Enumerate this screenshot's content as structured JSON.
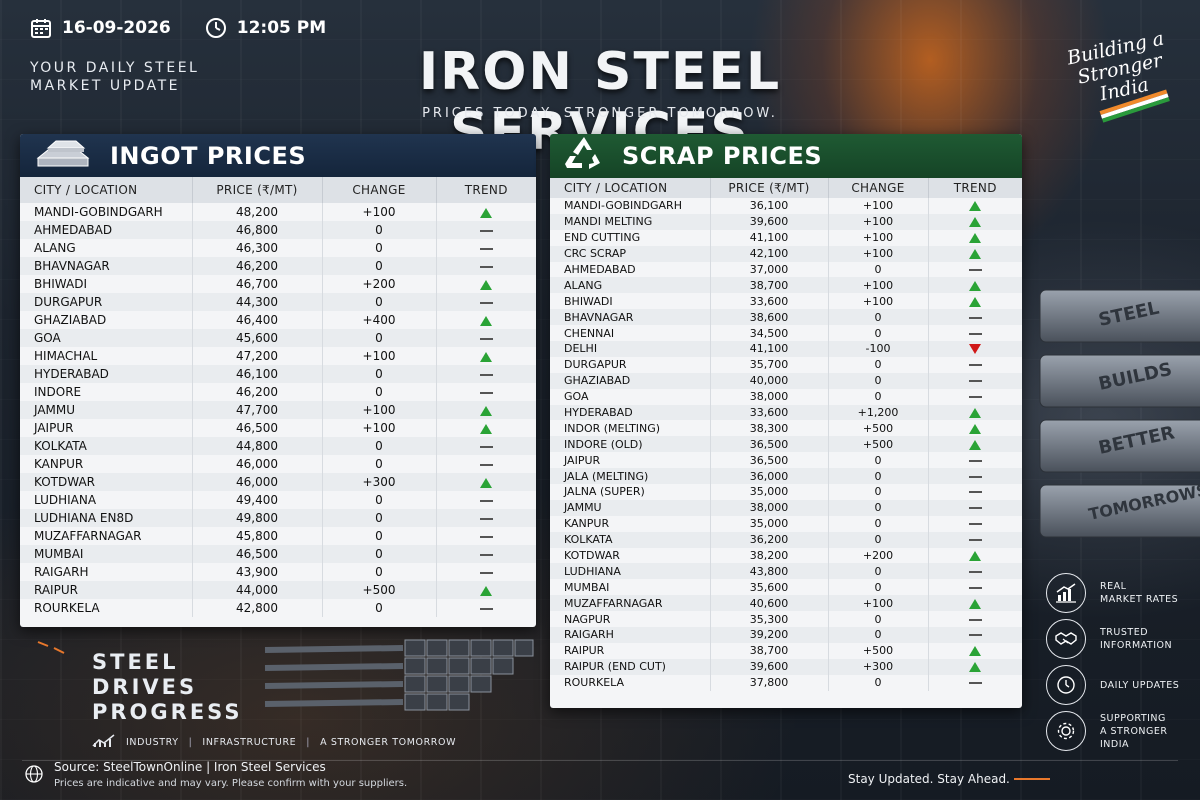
{
  "header": {
    "date": "16-09-2026",
    "time": "12:05 PM",
    "tagline": "YOUR DAILY STEEL MARKET UPDATE",
    "title": "IRON STEEL SERVICES",
    "subtitle": "PRICES TODAY. STRONGER TOMORROW.",
    "brand_script": "Building a Stronger India"
  },
  "ingot": {
    "title": "INGOT PRICES",
    "columns": [
      "CITY / LOCATION",
      "PRICE (₹/MT)",
      "CHANGE",
      "TREND"
    ],
    "rows": [
      {
        "city": "MANDI-GOBINDGARH",
        "price": "48,200",
        "change": "+100",
        "trend": "up"
      },
      {
        "city": "AHMEDABAD",
        "price": "46,800",
        "change": "0",
        "trend": "flat"
      },
      {
        "city": "ALANG",
        "price": "46,300",
        "change": "0",
        "trend": "flat"
      },
      {
        "city": "BHAVNAGAR",
        "price": "46,200",
        "change": "0",
        "trend": "flat"
      },
      {
        "city": "BHIWADI",
        "price": "46,700",
        "change": "+200",
        "trend": "up"
      },
      {
        "city": "DURGAPUR",
        "price": "44,300",
        "change": "0",
        "trend": "flat"
      },
      {
        "city": "GHAZIABAD",
        "price": "46,400",
        "change": "+400",
        "trend": "up"
      },
      {
        "city": "GOA",
        "price": "45,600",
        "change": "0",
        "trend": "flat"
      },
      {
        "city": "HIMACHAL",
        "price": "47,200",
        "change": "+100",
        "trend": "up"
      },
      {
        "city": "HYDERABAD",
        "price": "46,100",
        "change": "0",
        "trend": "flat"
      },
      {
        "city": "INDORE",
        "price": "46,200",
        "change": "0",
        "trend": "flat"
      },
      {
        "city": "JAMMU",
        "price": "47,700",
        "change": "+100",
        "trend": "up"
      },
      {
        "city": "JAIPUR",
        "price": "46,500",
        "change": "+100",
        "trend": "up"
      },
      {
        "city": "KOLKATA",
        "price": "44,800",
        "change": "0",
        "trend": "flat"
      },
      {
        "city": "KANPUR",
        "price": "46,000",
        "change": "0",
        "trend": "flat"
      },
      {
        "city": "KOTDWAR",
        "price": "46,000",
        "change": "+300",
        "trend": "up"
      },
      {
        "city": "LUDHIANA",
        "price": "49,400",
        "change": "0",
        "trend": "flat"
      },
      {
        "city": "LUDHIANA EN8D",
        "price": "49,800",
        "change": "0",
        "trend": "flat"
      },
      {
        "city": "MUZAFFARNAGAR",
        "price": "45,800",
        "change": "0",
        "trend": "flat"
      },
      {
        "city": "MUMBAI",
        "price": "46,500",
        "change": "0",
        "trend": "flat"
      },
      {
        "city": "RAIGARH",
        "price": "43,900",
        "change": "0",
        "trend": "flat"
      },
      {
        "city": "RAIPUR",
        "price": "44,000",
        "change": "+500",
        "trend": "up"
      },
      {
        "city": "ROURKELA",
        "price": "42,800",
        "change": "0",
        "trend": "flat"
      }
    ]
  },
  "scrap": {
    "title": "SCRAP PRICES",
    "columns": [
      "CITY / LOCATION",
      "PRICE (₹/MT)",
      "CHANGE",
      "TREND"
    ],
    "rows": [
      {
        "city": "MANDI-GOBINDGARH",
        "price": "36,100",
        "change": "+100",
        "trend": "up"
      },
      {
        "city": "MANDI MELTING",
        "price": "39,600",
        "change": "+100",
        "trend": "up"
      },
      {
        "city": "END CUTTING",
        "price": "41,100",
        "change": "+100",
        "trend": "up"
      },
      {
        "city": "CRC SCRAP",
        "price": "42,100",
        "change": "+100",
        "trend": "up"
      },
      {
        "city": "AHMEDABAD",
        "price": "37,000",
        "change": "0",
        "trend": "flat"
      },
      {
        "city": "ALANG",
        "price": "38,700",
        "change": "+100",
        "trend": "up"
      },
      {
        "city": "BHIWADI",
        "price": "33,600",
        "change": "+100",
        "trend": "up"
      },
      {
        "city": "BHAVNAGAR",
        "price": "38,600",
        "change": "0",
        "trend": "flat"
      },
      {
        "city": "CHENNAI",
        "price": "34,500",
        "change": "0",
        "trend": "flat"
      },
      {
        "city": "DELHI",
        "price": "41,100",
        "change": "-100",
        "trend": "down"
      },
      {
        "city": "DURGAPUR",
        "price": "35,700",
        "change": "0",
        "trend": "flat"
      },
      {
        "city": "GHAZIABAD",
        "price": "40,000",
        "change": "0",
        "trend": "flat"
      },
      {
        "city": "GOA",
        "price": "38,000",
        "change": "0",
        "trend": "flat"
      },
      {
        "city": "HYDERABAD",
        "price": "33,600",
        "change": "+1,200",
        "trend": "up"
      },
      {
        "city": "INDOR (MELTING)",
        "price": "38,300",
        "change": "+500",
        "trend": "up"
      },
      {
        "city": "INDORE (OLD)",
        "price": "36,500",
        "change": "+500",
        "trend": "up"
      },
      {
        "city": "JAIPUR",
        "price": "36,500",
        "change": "0",
        "trend": "flat"
      },
      {
        "city": "JALA (MELTING)",
        "price": "36,000",
        "change": "0",
        "trend": "flat"
      },
      {
        "city": "JALNA (SUPER)",
        "price": "35,000",
        "change": "0",
        "trend": "flat"
      },
      {
        "city": "JAMMU",
        "price": "38,000",
        "change": "0",
        "trend": "flat"
      },
      {
        "city": "KANPUR",
        "price": "35,000",
        "change": "0",
        "trend": "flat"
      },
      {
        "city": "KOLKATA",
        "price": "36,200",
        "change": "0",
        "trend": "flat"
      },
      {
        "city": "KOTDWAR",
        "price": "38,200",
        "change": "+200",
        "trend": "up"
      },
      {
        "city": "LUDHIANA",
        "price": "43,800",
        "change": "0",
        "trend": "flat"
      },
      {
        "city": "MUMBAI",
        "price": "35,600",
        "change": "0",
        "trend": "flat"
      },
      {
        "city": "MUZAFFARNAGAR",
        "price": "40,600",
        "change": "+100",
        "trend": "up"
      },
      {
        "city": "NAGPUR",
        "price": "35,300",
        "change": "0",
        "trend": "flat"
      },
      {
        "city": "RAIGARH",
        "price": "39,200",
        "change": "0",
        "trend": "flat"
      },
      {
        "city": "RAIPUR",
        "price": "38,700",
        "change": "+500",
        "trend": "up"
      },
      {
        "city": "RAIPUR (END CUT)",
        "price": "39,600",
        "change": "+300",
        "trend": "up"
      },
      {
        "city": "ROURKELA",
        "price": "37,800",
        "change": "0",
        "trend": "flat"
      }
    ]
  },
  "slogan": {
    "line1": "STEEL",
    "line2": "DRIVES",
    "line3": "PROGRESS",
    "tags": [
      "INDUSTRY",
      "INFRASTRUCTURE",
      "A STRONGER TOMORROW"
    ]
  },
  "bar_engravings": [
    "STEEL",
    "BUILDS",
    "BETTER",
    "TOMORROWS"
  ],
  "features": [
    {
      "icon": "chart-icon",
      "line1": "REAL",
      "line2": "MARKET RATES"
    },
    {
      "icon": "handshake-icon",
      "line1": "TRUSTED",
      "line2": "INFORMATION"
    },
    {
      "icon": "clock-icon",
      "line1": "DAILY UPDATES",
      "line2": ""
    },
    {
      "icon": "gear-icon",
      "line1": "SUPPORTING",
      "line2": "A STRONGER INDIA"
    }
  ],
  "footer": {
    "source": "Source: SteelTownOnline  |  Iron Steel Services",
    "disclaimer": "Prices are indicative and may vary. Please confirm with your suppliers.",
    "stay": "Stay Updated. Stay Ahead."
  },
  "colors": {
    "up": "#2aa336",
    "down": "#d01818",
    "ingot_header": "#14253b",
    "scrap_header": "#154426",
    "accent": "#e8782c"
  }
}
